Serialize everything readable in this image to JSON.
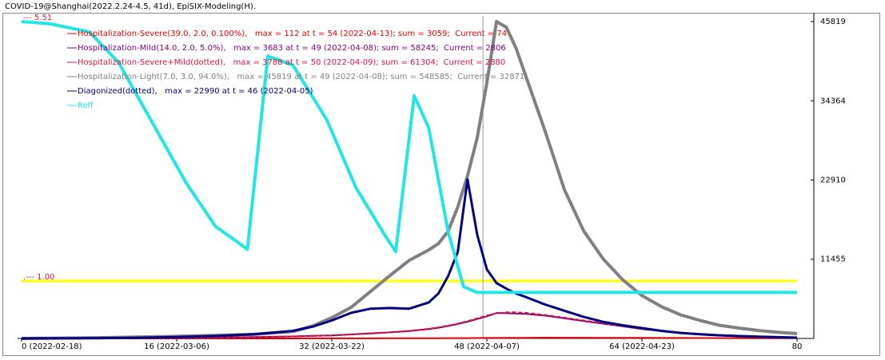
{
  "chart_data": {
    "type": "line",
    "title": "COVID-19@Shanghai(2022.2.24-4.5, 41d), EpiSIX-Modeling(H).",
    "x": [
      0,
      4,
      8,
      12,
      16,
      20,
      24,
      28,
      30,
      32,
      34,
      36,
      38,
      40,
      42,
      43,
      44,
      45,
      46,
      47,
      48,
      49,
      50,
      51,
      52,
      54,
      56,
      58,
      60,
      62,
      64,
      66,
      68,
      70,
      72,
      74,
      76,
      78,
      80
    ],
    "xlim": [
      0,
      80
    ],
    "xticks": [
      {
        "value": 0,
        "label": "0 (2022-02-18)"
      },
      {
        "value": 16,
        "label": "16 (2022-03-06)"
      },
      {
        "value": 32,
        "label": "32 (2022-03-22)"
      },
      {
        "value": 48,
        "label": "48 (2022-04-07)"
      },
      {
        "value": 64,
        "label": "64 (2022-04-23)"
      },
      80
    ],
    "ylim": [
      0,
      45819
    ],
    "yticks": [
      11455,
      22910,
      34364,
      45819
    ],
    "y2lim": [
      0,
      5.51
    ],
    "y2ticks": [
      {
        "value": 5.51,
        "label": "--- 5.51"
      },
      {
        "value": 1,
        "label": ".--- 1.00"
      }
    ],
    "reference_line": {
      "axis": "y2",
      "value": 1,
      "color": "#ffff00"
    },
    "cursor_x": 47.6,
    "series": [
      {
        "name": "Hospitalization-Severe(39.0, 2.0, 0.100%),   max = 112 at t = 54 (2022-04-13); sum = 3059;  Current = 74",
        "color": "#e00000",
        "line_width": 2,
        "dashed": false,
        "values": [
          0,
          0,
          0,
          1,
          1,
          2,
          3,
          5,
          7,
          9,
          12,
          16,
          20,
          26,
          33,
          37,
          41,
          46,
          51,
          57,
          64,
          72,
          80,
          88,
          95,
          112,
          108,
          102,
          95,
          88,
          80,
          72,
          64,
          57,
          50,
          44,
          38,
          33,
          28
        ]
      },
      {
        "name": "Hospitalization-Mild(14.0, 2.0, 5.0%),   max = 3683 at t = 49 (2022-04-08); sum = 58245;  Current = 2806",
        "color": "#800080",
        "line_width": 2,
        "dashed": false,
        "values": [
          0,
          10,
          19,
          39,
          68,
          116,
          194,
          291,
          369,
          437,
          582,
          728,
          873,
          1067,
          1358,
          1552,
          1795,
          2086,
          2425,
          2813,
          3200,
          3683,
          3650,
          3600,
          3560,
          3300,
          2910,
          2520,
          2130,
          1750,
          1360,
          1070,
          825,
          630,
          485,
          370,
          270,
          195,
          145
        ]
      },
      {
        "name": "Hospitalization-Severe+Mild(dotted),   max = 3788 at t = 50 (2022-04-09); sum = 61304;  Current = 2880",
        "color": "#dc143c",
        "line_width": 2,
        "dashed": true,
        "values": [
          0,
          10,
          20,
          40,
          70,
          120,
          200,
          300,
          380,
          450,
          600,
          750,
          900,
          1100,
          1400,
          1600,
          1850,
          2150,
          2500,
          2900,
          3300,
          3650,
          3788,
          3770,
          3700,
          3400,
          3000,
          2600,
          2200,
          1800,
          1400,
          1100,
          850,
          650,
          500,
          380,
          280,
          200,
          150
        ]
      },
      {
        "name": "Hospitalization-Light(7.0, 3.0, 94.0%),   max = 45819 at t = 49 (2022-04-08); sum = 548585;  Current = 32871",
        "color": "#808080",
        "line_width": 4,
        "dashed": false,
        "values": [
          0,
          50,
          100,
          200,
          300,
          450,
          600,
          1000,
          1800,
          3000,
          4500,
          6800,
          9100,
          11300,
          12800,
          13700,
          15500,
          19000,
          23500,
          29000,
          37000,
          45819,
          45000,
          42000,
          38000,
          30000,
          21500,
          15500,
          11500,
          8500,
          6200,
          4600,
          3400,
          2600,
          1900,
          1500,
          1150,
          900,
          700
        ]
      },
      {
        "name": "Diagonized(dotted),   max = 22990 at t = 46 (2022-04-05)",
        "color": "#000080",
        "line_width": 3,
        "dashed": false,
        "values": [
          0,
          20,
          50,
          100,
          200,
          350,
          600,
          1100,
          1700,
          2600,
          3700,
          4300,
          4400,
          4300,
          5200,
          6500,
          9000,
          12500,
          22990,
          15000,
          10000,
          8000,
          7200,
          6500,
          6000,
          4900,
          4000,
          3100,
          2400,
          1900,
          1500,
          1100,
          800,
          600,
          450,
          350,
          250,
          180,
          120
        ]
      },
      {
        "name": "Reff",
        "color": "#22e5e5",
        "line_width": 4,
        "dashed": false,
        "axis": "y2",
        "x": [
          0,
          3,
          7,
          10,
          13,
          17,
          20,
          23.3,
          25.4,
          28,
          31.5,
          34.5,
          37.5,
          38.6,
          40.5,
          42,
          44,
          45.6,
          47,
          80
        ],
        "values": [
          5.51,
          5.47,
          5.33,
          4.8,
          3.9,
          2.7,
          1.95,
          1.55,
          4.91,
          4.75,
          3.8,
          2.62,
          1.79,
          1.51,
          4.22,
          3.66,
          1.86,
          0.9,
          0.8,
          0.8
        ]
      }
    ]
  }
}
